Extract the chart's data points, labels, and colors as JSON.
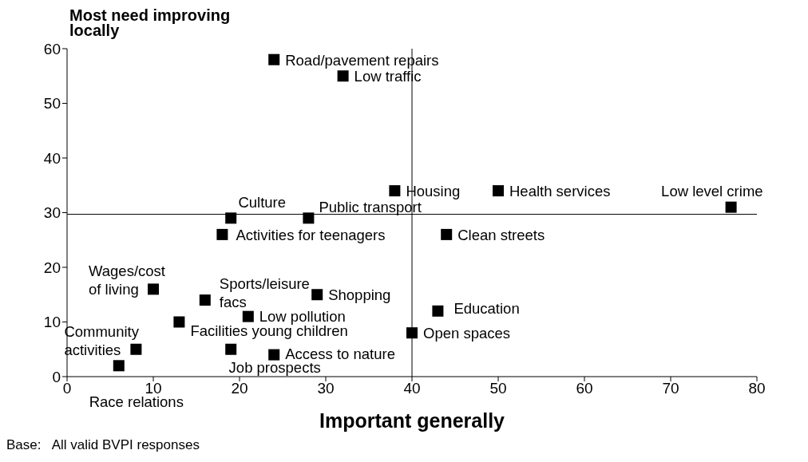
{
  "chart_data": {
    "type": "scatter",
    "ylabel": "Most need improving locally",
    "xlabel": "Important generally",
    "x": [
      24,
      32,
      38,
      50,
      77,
      19,
      28,
      18,
      44,
      10,
      16,
      29,
      21,
      43,
      13,
      40,
      8,
      19,
      24,
      6
    ],
    "values": [
      58,
      55,
      34,
      34,
      31,
      29,
      29,
      26,
      26,
      16,
      14,
      15,
      11,
      12,
      10,
      8,
      5,
      5,
      4,
      2
    ],
    "value_labels": [
      "Road/pavement repairs",
      "Low traffic",
      "Housing",
      "Health services",
      "Low level crime",
      "Culture",
      "Public transport",
      "Activities for teenagers",
      "Clean streets",
      "Wages/cost of living",
      "Sports/leisure facs",
      "Shopping",
      "Low pollution",
      "Education",
      "Facilities young children",
      "Open spaces",
      "Community activities",
      "Job prospects",
      "Access to nature",
      "Race relations"
    ],
    "color": "#000000",
    "marker": "square",
    "grid": false,
    "legend": false,
    "xlim": [
      0,
      80
    ],
    "xticks": [
      0,
      10,
      20,
      30,
      40,
      50,
      60,
      70,
      80
    ],
    "ylim": [
      0,
      60
    ],
    "yticks": [
      0,
      10,
      20,
      30,
      40,
      50,
      60
    ],
    "ref_lines": [
      {
        "axis": "x",
        "value": 40,
        "color": "#000000"
      },
      {
        "axis": "y",
        "value": 29.7,
        "color": "#000000"
      }
    ],
    "annotations": [
      "Base:   All valid BVPI responses"
    ]
  }
}
